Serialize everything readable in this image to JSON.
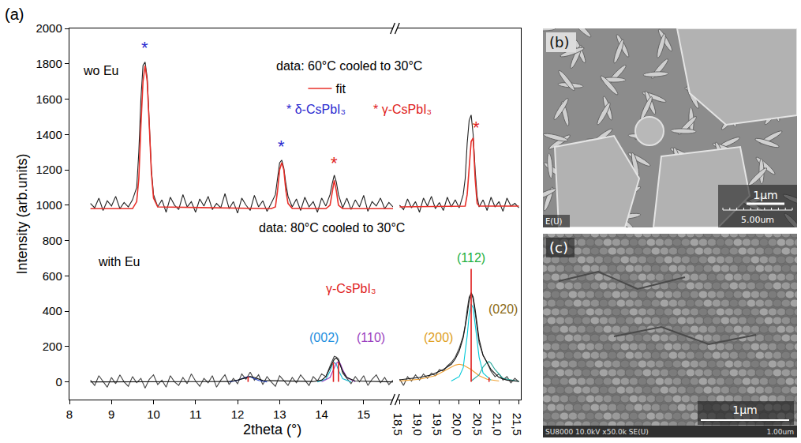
{
  "chart_data": {
    "type": "line",
    "label": "(a)",
    "x_label": "2theta (°)",
    "y_label": "Intensity (arb.units)",
    "xlim": [
      8,
      15.7
    ],
    "x2lim": [
      18.45,
      21.55
    ],
    "xticks": [
      8,
      9,
      10,
      11,
      12,
      13,
      14,
      15
    ],
    "x2ticks": [
      {
        "value": 18.5,
        "label": "18,5"
      },
      {
        "value": 19.0,
        "label": "19,0"
      },
      {
        "value": 19.5,
        "label": "19,5"
      },
      {
        "value": 20.0,
        "label": "20,0"
      },
      {
        "value": 20.5,
        "label": "20,5"
      },
      {
        "value": 21.0,
        "label": "21,0"
      },
      {
        "value": 21.5,
        "label": "21,5"
      }
    ],
    "ylim": [
      -100,
      2000
    ],
    "yticks": [
      0,
      200,
      400,
      600,
      800,
      1000,
      1200,
      1400,
      1600,
      1800,
      2000
    ],
    "grid": false,
    "legend": "top",
    "series": [
      {
        "type": "line",
        "color": "#222222",
        "x": [
          8.5,
          8.6,
          8.7,
          8.8,
          8.9,
          9.0,
          9.1,
          9.2,
          9.3,
          9.4,
          9.5,
          9.6,
          9.65,
          9.7,
          9.75,
          9.8,
          9.85,
          9.9,
          9.95,
          10.0,
          10.1,
          10.2,
          10.3,
          10.4,
          10.5,
          10.6,
          10.7,
          10.8,
          10.9,
          11.0,
          11.1,
          11.2,
          11.3,
          11.4,
          11.5,
          11.6,
          11.7,
          11.8,
          11.9,
          12.0,
          12.1,
          12.2,
          12.3,
          12.4,
          12.5,
          12.6,
          12.7,
          12.8,
          12.9,
          12.95,
          13.0,
          13.05,
          13.1,
          13.15,
          13.2,
          13.3,
          13.4,
          13.5,
          13.6,
          13.7,
          13.8,
          13.9,
          14.0,
          14.1,
          14.2,
          14.25,
          14.3,
          14.35,
          14.4,
          14.5,
          14.6,
          14.7,
          14.8,
          14.9,
          15.0,
          15.1,
          15.2,
          15.3,
          15.4,
          15.5,
          15.6,
          15.7,
          null,
          18.5,
          18.6,
          18.7,
          18.8,
          18.9,
          19.0,
          19.1,
          19.2,
          19.3,
          19.4,
          19.5,
          19.6,
          19.7,
          19.8,
          19.9,
          20.0,
          20.1,
          20.15,
          20.2,
          20.25,
          20.3,
          20.35,
          20.4,
          20.45,
          20.5,
          20.6,
          20.7,
          20.8,
          20.9,
          21.0,
          21.1,
          21.2,
          21.3,
          21.4,
          21.5
        ],
        "values": [
          1010,
          985,
          1040,
          970,
          1025,
          995,
          1050,
          980,
          1015,
          990,
          1030,
          1100,
          1300,
          1600,
          1790,
          1810,
          1720,
          1450,
          1200,
          1060,
          990,
          1030,
          960,
          1045,
          1000,
          975,
          1060,
          990,
          1020,
          960,
          1035,
          995,
          1050,
          975,
          1010,
          985,
          1065,
          980,
          1020,
          955,
          1040,
          1000,
          970,
          1055,
          990,
          1025,
          965,
          1010,
          1060,
          1150,
          1240,
          1255,
          1210,
          1120,
          1050,
          990,
          1035,
          970,
          1045,
          990,
          1020,
          960,
          1040,
          995,
          1060,
          1120,
          1170,
          1130,
          1060,
          985,
          1040,
          975,
          1030,
          990,
          1055,
          965,
          1020,
          995,
          1040,
          980,
          1015,
          990,
          null,
          1000,
          975,
          1035,
          985,
          1020,
          960,
          1040,
          995,
          1050,
          980,
          1015,
          970,
          1045,
          990,
          1030,
          985,
          1060,
          1150,
          1350,
          1480,
          1510,
          1400,
          1200,
          1050,
          990,
          1030,
          970,
          1045,
          990,
          1020,
          965,
          1040,
          995,
          1010,
          985
        ]
      },
      {
        "type": "line",
        "name": "fit",
        "color": "#e8302a",
        "x": [
          8.5,
          9.5,
          9.6,
          9.65,
          9.7,
          9.75,
          9.8,
          9.85,
          9.9,
          9.95,
          10.0,
          10.1,
          12.8,
          12.9,
          12.95,
          13.0,
          13.05,
          13.1,
          13.15,
          13.2,
          13.3,
          14.1,
          14.2,
          14.25,
          14.3,
          14.35,
          14.4,
          14.5,
          15.7,
          null,
          18.5,
          20.15,
          20.2,
          20.25,
          20.3,
          20.35,
          20.4,
          20.45,
          20.5,
          21.5
        ],
        "values": [
          980,
          980,
          1020,
          1150,
          1450,
          1700,
          1790,
          1700,
          1450,
          1180,
          1040,
          990,
          980,
          990,
          1080,
          1200,
          1240,
          1200,
          1080,
          1010,
          982,
          980,
          1000,
          1080,
          1140,
          1080,
          1000,
          980,
          980,
          null,
          990,
          995,
          1060,
          1200,
          1360,
          1380,
          1150,
          1010,
          995,
          995
        ]
      },
      {
        "type": "line",
        "color": "#444444",
        "x": [
          8.5,
          8.6,
          8.7,
          8.8,
          8.9,
          9.0,
          9.1,
          9.2,
          9.3,
          9.4,
          9.5,
          9.6,
          9.7,
          9.8,
          9.9,
          10.0,
          10.1,
          10.2,
          10.3,
          10.4,
          10.5,
          10.6,
          10.7,
          10.8,
          10.9,
          11.0,
          11.1,
          11.2,
          11.3,
          11.4,
          11.5,
          11.6,
          11.7,
          11.8,
          11.9,
          12.0,
          12.1,
          12.2,
          12.3,
          12.4,
          12.5,
          12.6,
          12.7,
          12.8,
          12.9,
          13.0,
          13.1,
          13.2,
          13.3,
          13.4,
          13.5,
          13.6,
          13.7,
          13.8,
          13.9,
          14.0,
          14.1,
          14.2,
          14.25,
          14.3,
          14.35,
          14.4,
          14.45,
          14.5,
          14.6,
          14.7,
          14.8,
          14.9,
          15.0,
          15.1,
          15.2,
          15.3,
          15.4,
          15.5,
          15.6,
          15.7,
          null,
          18.5,
          18.6,
          18.7,
          18.8,
          18.9,
          19.0,
          19.1,
          19.2,
          19.3,
          19.4,
          19.5,
          19.6,
          19.7,
          19.8,
          19.9,
          20.0,
          20.1,
          20.15,
          20.2,
          20.25,
          20.3,
          20.35,
          20.4,
          20.45,
          20.5,
          20.6,
          20.7,
          20.8,
          20.9,
          21.0,
          21.1,
          21.2,
          21.3,
          21.4,
          21.5
        ],
        "values": [
          10,
          -20,
          35,
          5,
          -30,
          25,
          -10,
          40,
          0,
          -25,
          30,
          -5,
          20,
          -35,
          15,
          40,
          -15,
          10,
          -30,
          35,
          0,
          -20,
          25,
          -10,
          45,
          5,
          -25,
          20,
          -5,
          35,
          -30,
          10,
          40,
          -15,
          20,
          -10,
          45,
          15,
          55,
          10,
          40,
          -15,
          30,
          0,
          -25,
          35,
          5,
          -20,
          25,
          -5,
          40,
          10,
          -20,
          30,
          5,
          45,
          30,
          90,
          120,
          145,
          140,
          130,
          95,
          50,
          20,
          -10,
          30,
          0,
          35,
          -20,
          15,
          40,
          -5,
          25,
          -15,
          10,
          null,
          15,
          -20,
          30,
          5,
          40,
          10,
          45,
          20,
          50,
          35,
          70,
          60,
          90,
          110,
          140,
          190,
          260,
          320,
          410,
          480,
          500,
          470,
          390,
          300,
          220,
          150,
          110,
          60,
          30,
          45,
          10,
          30,
          -5,
          20,
          0
        ]
      },
      {
        "type": "line",
        "color": "#2040c8",
        "x": [
          11.8,
          12.0,
          12.1,
          12.2,
          12.25,
          12.3,
          12.4,
          12.5,
          12.7
        ],
        "values": [
          0,
          8,
          18,
          27,
          30,
          28,
          18,
          8,
          0
        ]
      },
      {
        "type": "line",
        "color": "#17b8d0",
        "x": [
          13.9,
          14.1,
          14.2,
          14.25,
          14.3,
          14.35,
          14.4,
          14.5,
          14.7
        ],
        "values": [
          0,
          15,
          60,
          95,
          110,
          100,
          65,
          18,
          0
        ]
      },
      {
        "type": "line",
        "color": "#9b3fc0",
        "x": [
          14.0,
          14.2,
          14.3,
          14.35,
          14.4,
          14.45,
          14.5,
          14.6,
          14.8
        ],
        "values": [
          0,
          25,
          80,
          105,
          115,
          100,
          70,
          25,
          0
        ]
      },
      {
        "type": "line",
        "color": "#f0a030",
        "x": [
          18.5,
          19.0,
          19.4,
          19.7,
          19.9,
          20.0,
          20.1,
          20.3,
          20.5,
          20.7,
          21.0
        ],
        "values": [
          5,
          15,
          35,
          70,
          95,
          100,
          95,
          70,
          35,
          15,
          5
        ]
      },
      {
        "type": "line",
        "color": "#00c8d8",
        "x": [
          19.8,
          20.0,
          20.1,
          20.2,
          20.25,
          20.3,
          20.35,
          20.4,
          20.5,
          20.6,
          20.8
        ],
        "values": [
          5,
          30,
          80,
          260,
          380,
          440,
          420,
          330,
          140,
          50,
          10
        ]
      },
      {
        "type": "line",
        "color": "#26a69a",
        "x": [
          20.3,
          20.5,
          20.6,
          20.7,
          20.75,
          20.8,
          20.9,
          21.1,
          21.5
        ],
        "values": [
          5,
          40,
          85,
          110,
          115,
          105,
          70,
          20,
          3
        ]
      },
      {
        "type": "line",
        "color": "#111111",
        "x": [
          8.5,
          11.8,
          12.0,
          12.2,
          12.3,
          12.4,
          12.6,
          13.8,
          14.0,
          14.1,
          14.2,
          14.3,
          14.35,
          14.4,
          14.5,
          14.6,
          14.8,
          15.7,
          null,
          18.5,
          19.0,
          19.3,
          19.6,
          19.8,
          19.9,
          20.0,
          20.1,
          20.2,
          20.25,
          20.3,
          20.35,
          20.4,
          20.5,
          20.6,
          20.7,
          20.8,
          21.0,
          21.2,
          21.5
        ],
        "values": [
          0,
          2,
          10,
          25,
          30,
          25,
          8,
          2,
          10,
          30,
          80,
          128,
          135,
          120,
          60,
          25,
          5,
          0,
          null,
          12,
          25,
          40,
          70,
          100,
          130,
          175,
          250,
          380,
          460,
          505,
          480,
          410,
          240,
          150,
          110,
          70,
          25,
          10,
          3
        ]
      },
      {
        "type": "stick",
        "color": "#e02020",
        "x": [
          12.25,
          14.28,
          14.4,
          20.3,
          20.75
        ],
        "values": [
          30,
          110,
          110,
          640,
          25
        ]
      }
    ],
    "annotations": [
      {
        "text": "wo Eu",
        "x": 8.74,
        "y": 1760,
        "color": "#000000"
      },
      {
        "text": "data: 60°C cooled to 30°C",
        "x": 14.66,
        "y": 1790,
        "color": "#000000"
      },
      {
        "text": "*",
        "x": 9.8,
        "y": 1890,
        "color": "#2a2ad0"
      },
      {
        "text": "*",
        "x": 13.05,
        "y": 1330,
        "color": "#2a2ad0"
      },
      {
        "text": "*",
        "x": 14.3,
        "y": 1240,
        "color": "#e02020"
      },
      {
        "text": "*",
        "x": 20.42,
        "y": 1440,
        "color": "#e02020"
      },
      {
        "text": "* δ-CsPbI₃",
        "x": 13.86,
        "y": 1544,
        "color": "#2a2ad0"
      },
      {
        "text": "* γ-CsPbI₃",
        "x": 18.57,
        "y": 1544,
        "color": "#e02020"
      },
      {
        "text": "data: 80°C cooled to 30°C",
        "x": 14.24,
        "y": 870,
        "color": "#000000"
      },
      {
        "text": "with Eu",
        "x": 9.17,
        "y": 680,
        "color": "#000000"
      },
      {
        "text": "γ-CsPbI₃",
        "x": 14.7,
        "y": 530,
        "color": "#e02020"
      },
      {
        "text": "(002)",
        "x": 14.05,
        "y": 250,
        "color": "#1e90e0"
      },
      {
        "text": "(110)",
        "x": 15.18,
        "y": 250,
        "color": "#9b3fc0"
      },
      {
        "text": "(200)",
        "x": 19.47,
        "y": 250,
        "color": "#e0a020"
      },
      {
        "text": "(112)",
        "x": 20.3,
        "y": 700,
        "color": "#20b040"
      },
      {
        "text": "(020)",
        "x": 21.1,
        "y": 410,
        "color": "#8b6a14"
      }
    ]
  },
  "images": [
    {
      "label": "(b)",
      "texts": [
        "1μm",
        "5.00um",
        "E(U)"
      ]
    },
    {
      "label": "(c)",
      "texts": [
        "1μm",
        "SU8000 10.0kV x50.0k SE(U)",
        "1.00um"
      ]
    }
  ]
}
